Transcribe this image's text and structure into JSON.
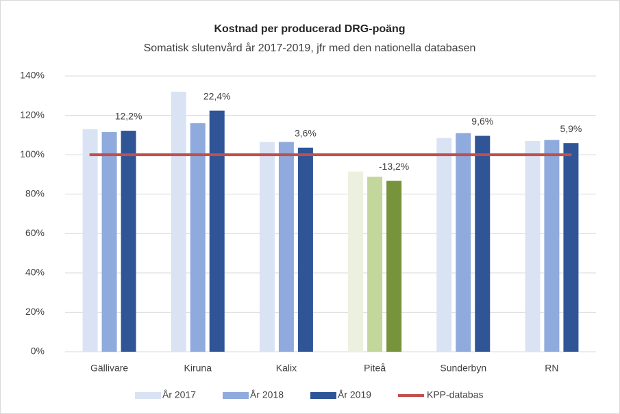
{
  "chart_data": {
    "type": "bar",
    "title": "Kostnad per producerad DRG-poäng",
    "subtitle": "Somatisk slutenvård år 2017-2019, jfr med den nationella databasen",
    "categories": [
      "Gällivare",
      "Kiruna",
      "Kalix",
      "Piteå",
      "Sunderbyn",
      "RN"
    ],
    "series": [
      {
        "name": "År 2017",
        "color": "#dae3f3",
        "colors": [
          "#dae3f3",
          "#dae3f3",
          "#dae3f3",
          "#ebf1de",
          "#dae3f3",
          "#dae3f3"
        ],
        "values": [
          113,
          132,
          106.5,
          91.5,
          108.5,
          107
        ]
      },
      {
        "name": "År 2018",
        "color": "#8faadc",
        "colors": [
          "#8faadc",
          "#8faadc",
          "#8faadc",
          "#c3d69b",
          "#8faadc",
          "#8faadc"
        ],
        "values": [
          111.5,
          116,
          106.5,
          88.8,
          111,
          107.5
        ]
      },
      {
        "name": "År 2019",
        "color": "#2f5597",
        "colors": [
          "#2f5597",
          "#2f5597",
          "#2f5597",
          "#77933c",
          "#2f5597",
          "#2f5597"
        ],
        "values": [
          112.2,
          122.4,
          103.6,
          86.8,
          109.6,
          105.9
        ]
      },
      {
        "name": "KPP-databas",
        "type": "line",
        "color": "#c0504d",
        "values": [
          100,
          100,
          100,
          100,
          100,
          100
        ]
      }
    ],
    "annotations": [
      "12,2%",
      "22,4%",
      "3,6%",
      "-13,2%",
      "9,6%",
      "5,9%"
    ],
    "ylim": [
      0,
      140
    ],
    "yticks": [
      {
        "value": 0,
        "label": "0%"
      },
      {
        "value": 20,
        "label": "20%"
      },
      {
        "value": 40,
        "label": "40%"
      },
      {
        "value": 60,
        "label": "60%"
      },
      {
        "value": 80,
        "label": "80%"
      },
      {
        "value": 100,
        "label": "100%"
      },
      {
        "value": 120,
        "label": "120%"
      },
      {
        "value": 140,
        "label": "140%"
      }
    ],
    "grid": true,
    "legend": "bottom"
  }
}
